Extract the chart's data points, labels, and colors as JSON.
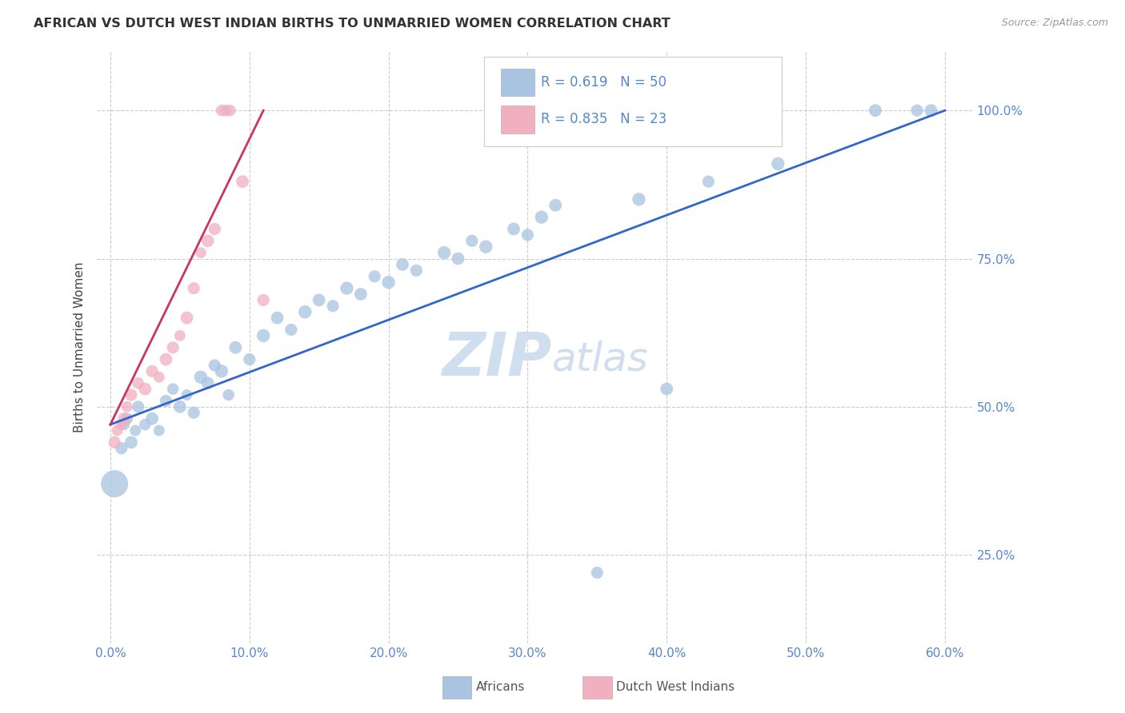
{
  "title": "AFRICAN VS DUTCH WEST INDIAN BIRTHS TO UNMARRIED WOMEN CORRELATION CHART",
  "source": "Source: ZipAtlas.com",
  "ylabel_label": "Births to Unmarried Women",
  "watermark": "ZIPatlas",
  "legend_entries": [
    {
      "label": "Africans",
      "color": "#a8c4e0",
      "R": "0.619",
      "N": "50"
    },
    {
      "label": "Dutch West Indians",
      "color": "#f0b0c0",
      "R": "0.835",
      "N": "23"
    }
  ],
  "blue_color": "#a8c4e0",
  "pink_color": "#f0b0c0",
  "blue_line_color": "#3366cc",
  "pink_line_color": "#cc3366",
  "title_color": "#333333",
  "axis_tick_color": "#5588cc",
  "grid_color": "#cccccc",
  "watermark_color": "#d0dff0",
  "background_color": "#ffffff",
  "xmin": 0.0,
  "xmax": 60.0,
  "ymin": 10.0,
  "ymax": 110.0,
  "blue_line": [
    [
      0.0,
      47.0
    ],
    [
      60.0,
      100.0
    ]
  ],
  "pink_line": [
    [
      0.0,
      47.0
    ],
    [
      11.0,
      100.0
    ]
  ],
  "blue_points": [
    [
      0.3,
      37.0,
      600
    ],
    [
      0.8,
      43.0,
      120
    ],
    [
      1.0,
      47.0,
      100
    ],
    [
      1.2,
      48.0,
      110
    ],
    [
      1.5,
      44.0,
      130
    ],
    [
      1.8,
      46.0,
      100
    ],
    [
      2.0,
      50.0,
      120
    ],
    [
      2.5,
      47.0,
      110
    ],
    [
      3.0,
      48.0,
      130
    ],
    [
      3.5,
      46.0,
      100
    ],
    [
      4.0,
      51.0,
      120
    ],
    [
      4.5,
      53.0,
      110
    ],
    [
      5.0,
      50.0,
      130
    ],
    [
      5.5,
      52.0,
      100
    ],
    [
      6.0,
      49.0,
      120
    ],
    [
      6.5,
      55.0,
      140
    ],
    [
      7.0,
      54.0,
      130
    ],
    [
      7.5,
      57.0,
      120
    ],
    [
      8.0,
      56.0,
      140
    ],
    [
      8.5,
      52.0,
      110
    ],
    [
      9.0,
      60.0,
      130
    ],
    [
      10.0,
      58.0,
      120
    ],
    [
      11.0,
      62.0,
      140
    ],
    [
      12.0,
      65.0,
      130
    ],
    [
      13.0,
      63.0,
      120
    ],
    [
      14.0,
      66.0,
      140
    ],
    [
      15.0,
      68.0,
      130
    ],
    [
      16.0,
      67.0,
      120
    ],
    [
      17.0,
      70.0,
      140
    ],
    [
      18.0,
      69.0,
      130
    ],
    [
      19.0,
      72.0,
      120
    ],
    [
      20.0,
      71.0,
      140
    ],
    [
      21.0,
      74.0,
      130
    ],
    [
      22.0,
      73.0,
      120
    ],
    [
      24.0,
      76.0,
      140
    ],
    [
      25.0,
      75.0,
      130
    ],
    [
      26.0,
      78.0,
      120
    ],
    [
      27.0,
      77.0,
      140
    ],
    [
      29.0,
      80.0,
      130
    ],
    [
      30.0,
      79.0,
      120
    ],
    [
      31.0,
      82.0,
      140
    ],
    [
      32.0,
      84.0,
      130
    ],
    [
      35.0,
      22.0,
      120
    ],
    [
      38.0,
      85.0,
      140
    ],
    [
      40.0,
      53.0,
      130
    ],
    [
      43.0,
      88.0,
      120
    ],
    [
      48.0,
      91.0,
      140
    ],
    [
      55.0,
      100.0,
      130
    ],
    [
      58.0,
      100.0,
      120
    ],
    [
      59.0,
      100.0,
      130
    ]
  ],
  "pink_points": [
    [
      0.3,
      44.0,
      120
    ],
    [
      0.5,
      46.0,
      100
    ],
    [
      0.8,
      47.0,
      110
    ],
    [
      1.0,
      48.0,
      130
    ],
    [
      1.2,
      50.0,
      100
    ],
    [
      1.5,
      52.0,
      120
    ],
    [
      2.0,
      54.0,
      110
    ],
    [
      2.5,
      53.0,
      130
    ],
    [
      3.0,
      56.0,
      120
    ],
    [
      3.5,
      55.0,
      100
    ],
    [
      4.0,
      58.0,
      130
    ],
    [
      4.5,
      60.0,
      120
    ],
    [
      5.0,
      62.0,
      100
    ],
    [
      5.5,
      65.0,
      130
    ],
    [
      6.0,
      70.0,
      120
    ],
    [
      6.5,
      76.0,
      100
    ],
    [
      7.0,
      78.0,
      130
    ],
    [
      7.5,
      80.0,
      120
    ],
    [
      8.0,
      100.0,
      110
    ],
    [
      8.3,
      100.0,
      110
    ],
    [
      8.6,
      100.0,
      110
    ],
    [
      9.5,
      88.0,
      130
    ],
    [
      11.0,
      68.0,
      120
    ]
  ]
}
